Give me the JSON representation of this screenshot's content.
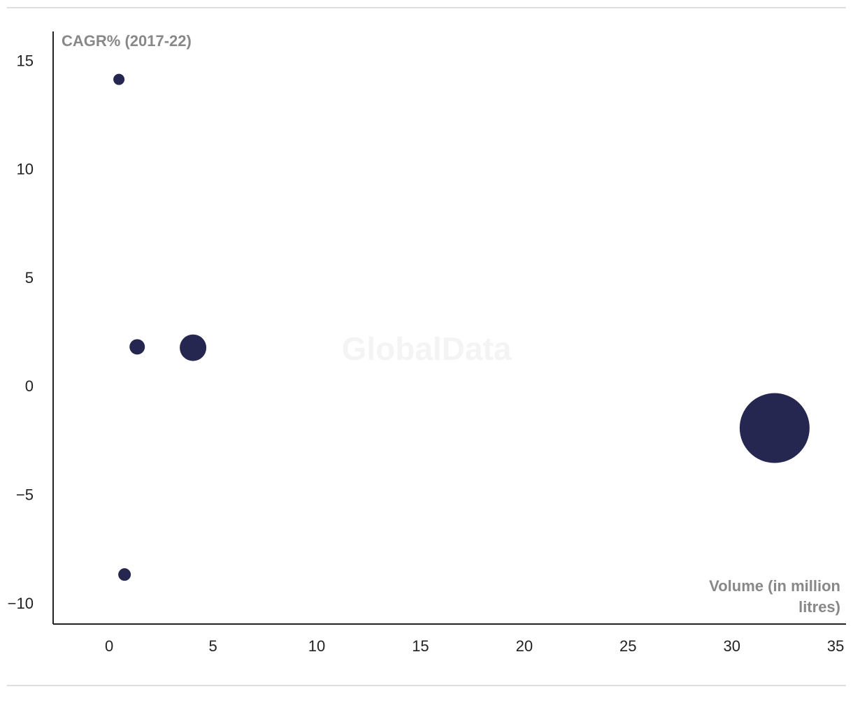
{
  "chart_data": {
    "type": "bubble",
    "watermark": "GlobalData",
    "y_label": "CAGR% (2017-22)",
    "x_label": "Volume (in million litres)",
    "x": [
      0.47,
      1.35,
      4.04,
      32.06,
      0.74
    ],
    "values": [
      14.19,
      1.87,
      1.83,
      -1.87,
      -8.62
    ],
    "sizes": [
      64,
      121,
      361,
      2500,
      81
    ],
    "color": "#262750",
    "xlim": [
      -2.7,
      35.5
    ],
    "xticks": [
      0,
      5,
      10,
      15,
      20,
      25,
      30,
      35
    ],
    "ylim": [
      -10.9,
      16.4
    ],
    "yticks": [
      {
        "value": -10,
        "label": "−10"
      },
      {
        "value": -5,
        "label": "−5"
      },
      0,
      5,
      10,
      15
    ]
  }
}
